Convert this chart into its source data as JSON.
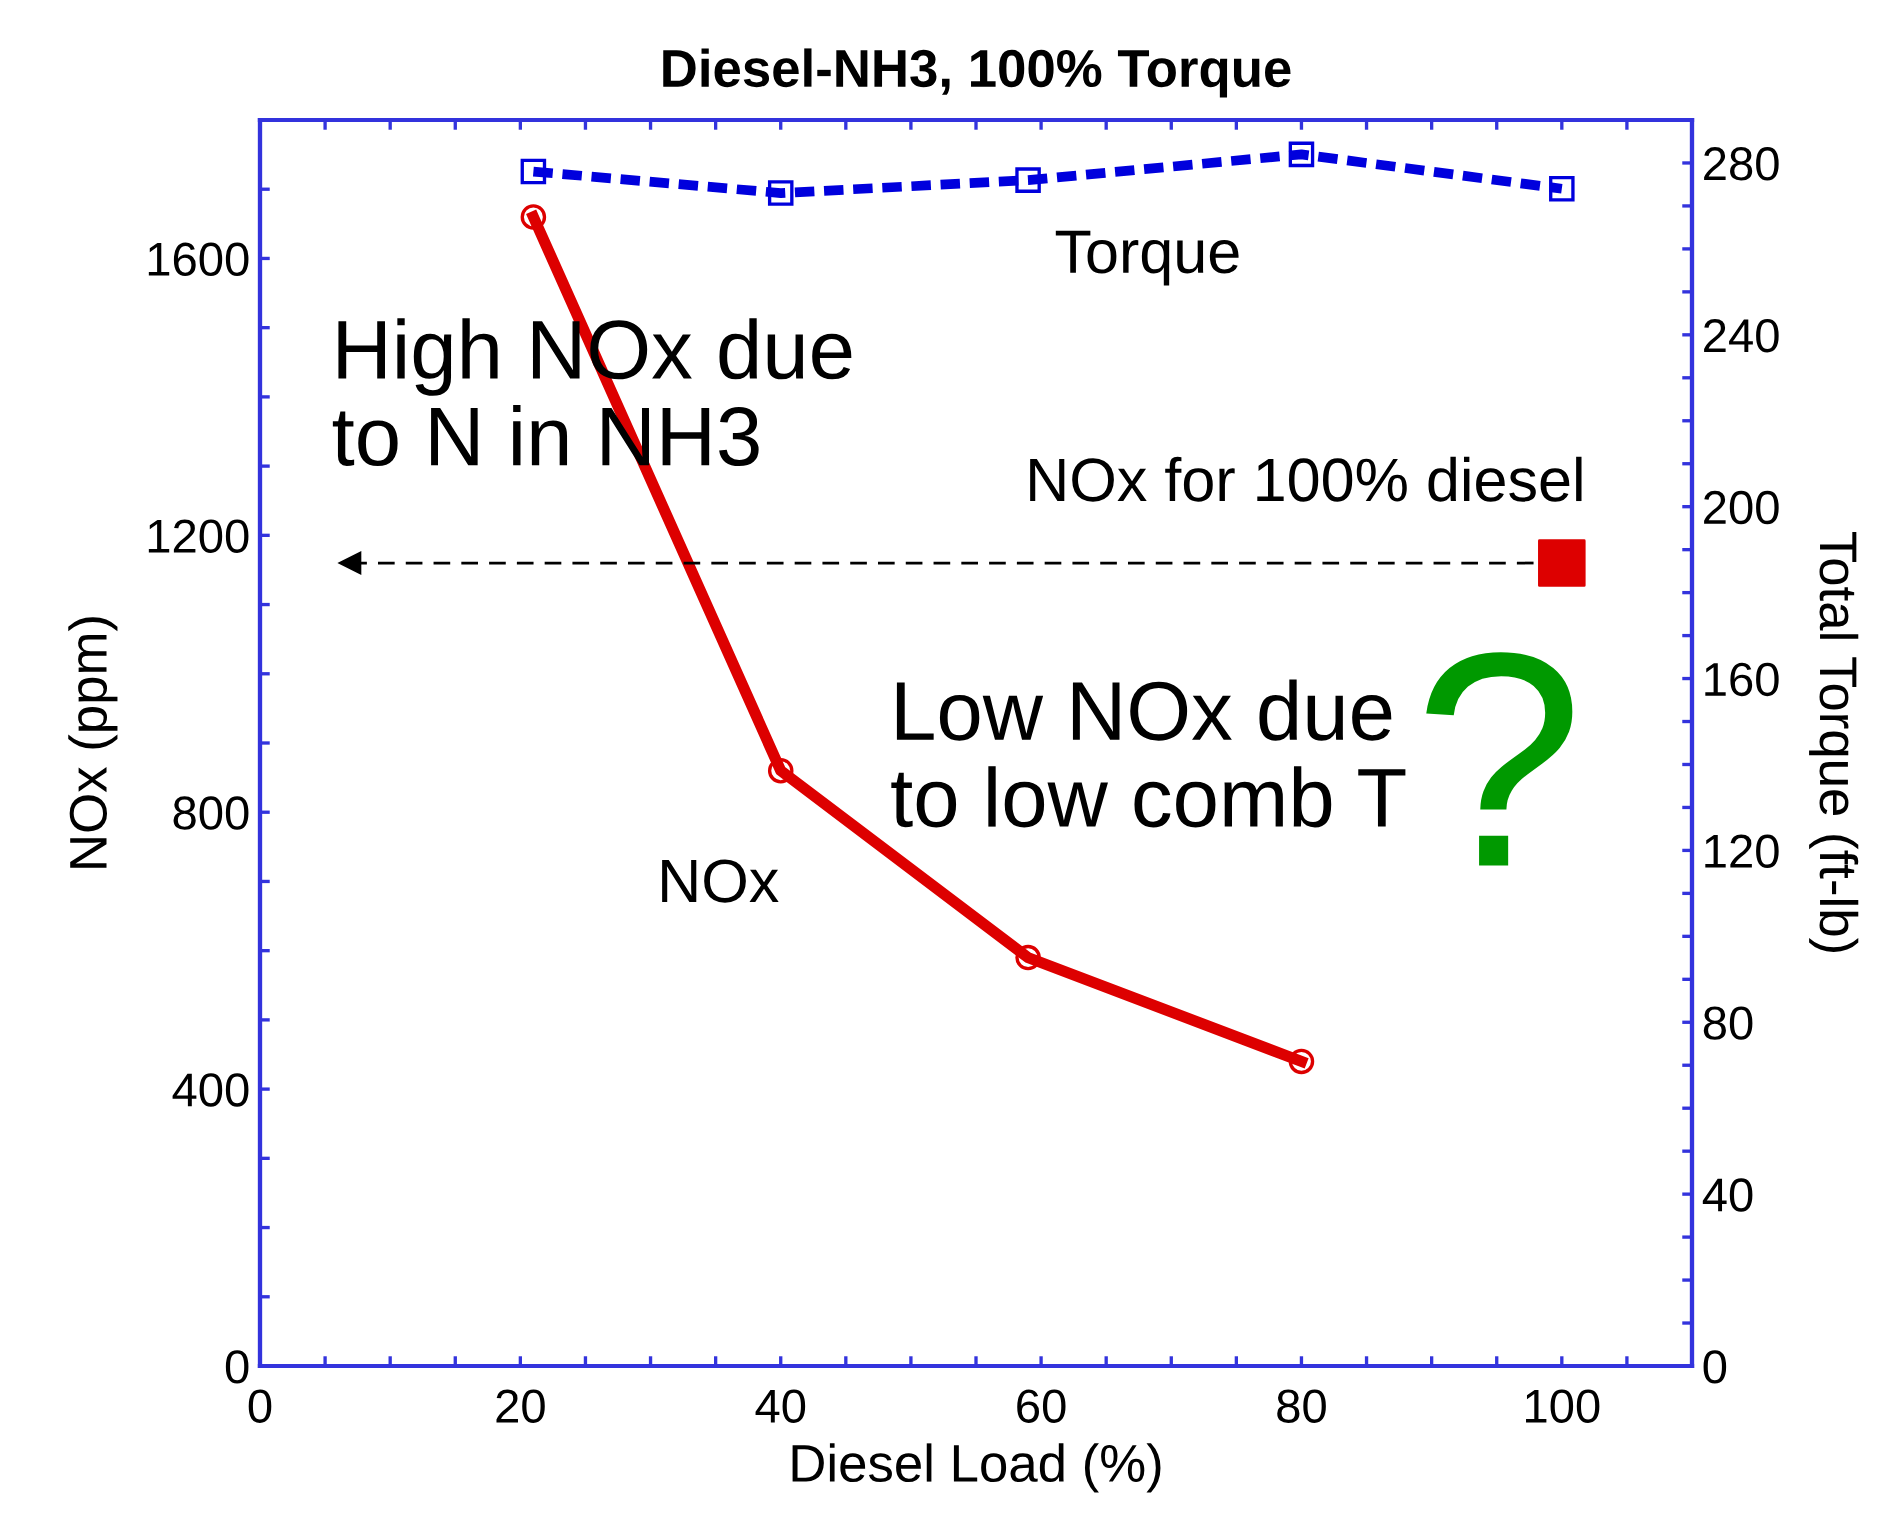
{
  "chart_data": {
    "type": "line",
    "title": "Diesel-NH3, 100% Torque",
    "xlabel": "Diesel Load (%)",
    "ylabel": "NOx (ppm)",
    "y2label": "Total Torque (ft-lb)",
    "xlim": [
      0,
      110
    ],
    "ylim": [
      0,
      1800
    ],
    "y2lim": [
      0,
      290
    ],
    "xticks": [
      0,
      {
        "value": 5,
        "label": null
      },
      {
        "value": 10,
        "label": null
      },
      {
        "value": 15,
        "label": null
      },
      20,
      {
        "value": 25,
        "label": null
      },
      {
        "value": 30,
        "label": null
      },
      {
        "value": 35,
        "label": null
      },
      40,
      {
        "value": 45,
        "label": null
      },
      {
        "value": 50,
        "label": null
      },
      {
        "value": 55,
        "label": null
      },
      60,
      {
        "value": 65,
        "label": null
      },
      {
        "value": 70,
        "label": null
      },
      {
        "value": 75,
        "label": null
      },
      80,
      {
        "value": 85,
        "label": null
      },
      {
        "value": 90,
        "label": null
      },
      {
        "value": 95,
        "label": null
      },
      100,
      {
        "value": 105,
        "label": null
      }
    ],
    "yticks": [
      0,
      {
        "value": 100,
        "label": null
      },
      {
        "value": 200,
        "label": null
      },
      {
        "value": 300,
        "label": null
      },
      400,
      {
        "value": 500,
        "label": null
      },
      {
        "value": 600,
        "label": null
      },
      {
        "value": 700,
        "label": null
      },
      800,
      {
        "value": 900,
        "label": null
      },
      {
        "value": 1000,
        "label": null
      },
      {
        "value": 1100,
        "label": null
      },
      1200,
      {
        "value": 1300,
        "label": null
      },
      {
        "value": 1400,
        "label": null
      },
      {
        "value": 1500,
        "label": null
      },
      1600,
      {
        "value": 1700,
        "label": null
      }
    ],
    "y2ticks": [
      0,
      {
        "value": 10,
        "label": null
      },
      {
        "value": 20,
        "label": null
      },
      {
        "value": 30,
        "label": null
      },
      40,
      {
        "value": 50,
        "label": null
      },
      {
        "value": 60,
        "label": null
      },
      {
        "value": 70,
        "label": null
      },
      80,
      {
        "value": 90,
        "label": null
      },
      {
        "value": 100,
        "label": null
      },
      {
        "value": 110,
        "label": null
      },
      120,
      {
        "value": 130,
        "label": null
      },
      {
        "value": 140,
        "label": null
      },
      {
        "value": 150,
        "label": null
      },
      160,
      {
        "value": 170,
        "label": null
      },
      {
        "value": 180,
        "label": null
      },
      {
        "value": 190,
        "label": null
      },
      200,
      {
        "value": 210,
        "label": null
      },
      {
        "value": 220,
        "label": null
      },
      {
        "value": 230,
        "label": null
      },
      240,
      {
        "value": 250,
        "label": null
      },
      {
        "value": 260,
        "label": null
      },
      {
        "value": 270,
        "label": null
      },
      280
    ],
    "grid": false,
    "ref_lines": [
      {
        "axis": "y",
        "value": 1160,
        "label": "NOx for 100% diesel",
        "color": "#000000",
        "line_style": "dashed"
      }
    ],
    "series": [
      {
        "color": "#dd0000",
        "x": [
          21,
          40,
          59,
          80
        ],
        "values": [
          1660,
          860,
          590,
          440
        ],
        "marker": "circle",
        "line_style": "solid"
      },
      {
        "axis": "y2",
        "color": "#0000dd",
        "x": [
          21,
          40,
          59,
          80,
          100
        ],
        "values": [
          278,
          273,
          276,
          282,
          274
        ],
        "marker": "square",
        "line_style": "dashed"
      },
      {
        "type": "scatter",
        "color": "#dd0000",
        "x": [
          100
        ],
        "values": [
          1160
        ],
        "marker": "square"
      }
    ],
    "annotations": [
      "Torque",
      "NOx",
      "High NOx due\nto N in NH3",
      "Low NOx due\nto low comb T",
      "?"
    ]
  }
}
